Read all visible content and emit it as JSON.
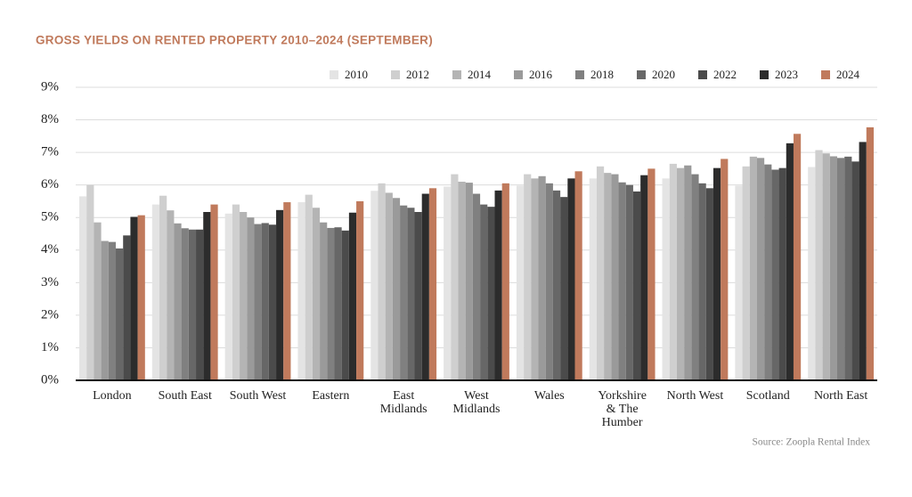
{
  "chart_data": {
    "type": "bar",
    "title": "GROSS YIELDS ON RENTED PROPERTY 2010–2024 (SEPTEMBER)",
    "source": "Source: Zoopla Rental Index",
    "categories": [
      "London",
      "South East",
      "South West",
      "Eastern",
      "East\nMidlands",
      "West\nMidlands",
      "Wales",
      "Yorkshire\n& The\nHumber",
      "North West",
      "Scotland",
      "North East"
    ],
    "series": [
      {
        "name": "2010",
        "color": "#e4e4e4",
        "values": [
          5.65,
          5.4,
          5.12,
          5.47,
          5.82,
          5.95,
          5.98,
          6.2,
          6.2,
          5.98,
          6.55
        ]
      },
      {
        "name": "2012",
        "color": "#cfcfcf",
        "values": [
          6.0,
          5.67,
          5.4,
          5.7,
          6.05,
          6.33,
          6.33,
          6.57,
          6.65,
          6.57,
          7.07
        ]
      },
      {
        "name": "2014",
        "color": "#b4b4b4",
        "values": [
          4.85,
          5.22,
          5.17,
          5.3,
          5.76,
          6.1,
          6.2,
          6.37,
          6.52,
          6.87,
          6.97
        ]
      },
      {
        "name": "2016",
        "color": "#9a9a9a",
        "values": [
          4.28,
          4.82,
          5.0,
          4.85,
          5.6,
          6.07,
          6.27,
          6.33,
          6.6,
          6.83,
          6.88
        ]
      },
      {
        "name": "2018",
        "color": "#808080",
        "values": [
          4.25,
          4.67,
          4.8,
          4.68,
          5.37,
          5.73,
          6.05,
          6.08,
          6.33,
          6.63,
          6.83
        ]
      },
      {
        "name": "2020",
        "color": "#676767",
        "values": [
          4.05,
          4.63,
          4.83,
          4.7,
          5.3,
          5.4,
          5.83,
          6.0,
          6.05,
          6.47,
          6.87
        ]
      },
      {
        "name": "2022",
        "color": "#4b4b4b",
        "values": [
          4.45,
          4.63,
          4.78,
          4.6,
          5.17,
          5.33,
          5.63,
          5.8,
          5.9,
          6.52,
          6.72
        ]
      },
      {
        "name": "2023",
        "color": "#2c2c2c",
        "values": [
          5.02,
          5.17,
          5.23,
          5.15,
          5.73,
          5.83,
          6.2,
          6.3,
          6.52,
          7.28,
          7.32
        ]
      },
      {
        "name": "2024",
        "color": "#c07a5c",
        "values": [
          5.07,
          5.4,
          5.47,
          5.5,
          5.9,
          6.05,
          6.42,
          6.5,
          6.8,
          7.57,
          7.77
        ]
      }
    ],
    "ylim": [
      0,
      9
    ],
    "yticks": [
      {
        "value": 0,
        "label": "0%"
      },
      {
        "value": 1,
        "label": "1%"
      },
      {
        "value": 2,
        "label": "2%"
      },
      {
        "value": 3,
        "label": "3%"
      },
      {
        "value": 4,
        "label": "4%"
      },
      {
        "value": 5,
        "label": "5%"
      },
      {
        "value": 6,
        "label": "6%"
      },
      {
        "value": 7,
        "label": "7%"
      },
      {
        "value": 8,
        "label": "8%"
      },
      {
        "value": 9,
        "label": "9%"
      }
    ],
    "grid": true,
    "legend": "top-right"
  }
}
